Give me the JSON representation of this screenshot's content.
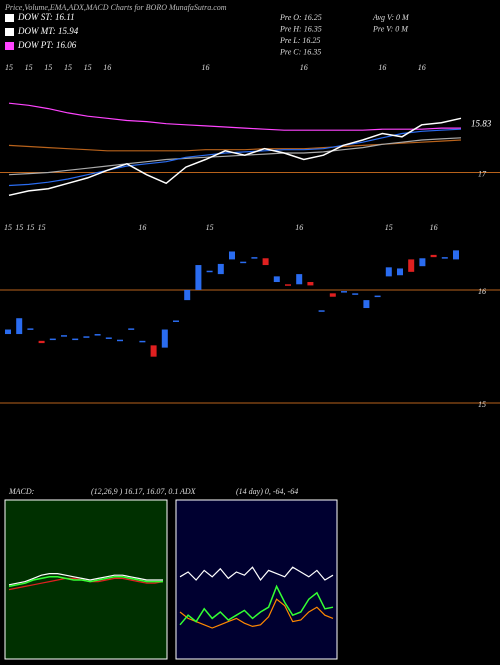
{
  "header": {
    "title": "Price,Volume,EMA,ADX,MACD Charts for BORO MunafaSutra.com",
    "legend": [
      {
        "label": "DOW ST: 16.11",
        "color": "#ffffff"
      },
      {
        "label": "DOW MT: 15.94",
        "color": "#ffffff"
      },
      {
        "label": "DOW PT: 16.06",
        "color": "#ff44ff"
      }
    ],
    "stats": [
      "Pre  O: 16.25",
      "Pre  H: 16.35",
      "Pre  L: 16.25",
      "Pre  C: 16.35",
      "Avg V: 0  M",
      "Pre  V: 0  M"
    ]
  },
  "chart_data": [
    {
      "type": "line",
      "annotation": "15.83",
      "hline_color": "#b8621b",
      "categories": [
        "15",
        "15",
        "15",
        "15",
        "15",
        "16",
        null,
        null,
        null,
        null,
        "16",
        null,
        null,
        null,
        null,
        "16",
        null,
        null,
        null,
        "16",
        null,
        "16",
        null,
        null
      ],
      "ylim": [
        16.7,
        17.9
      ],
      "yticks": [
        17
      ],
      "series": [
        {
          "color": "#b8621b",
          "values": [
            17.25,
            17.24,
            17.23,
            17.22,
            17.21,
            17.2,
            17.2,
            17.2,
            17.2,
            17.2,
            17.21,
            17.21,
            17.21,
            17.22,
            17.22,
            17.22,
            17.23,
            17.24,
            17.25,
            17.26,
            17.27,
            17.28,
            17.29,
            17.3
          ]
        },
        {
          "color": "#aaaaaa",
          "values": [
            16.98,
            16.99,
            17.0,
            17.02,
            17.04,
            17.06,
            17.08,
            17.1,
            17.12,
            17.13,
            17.14,
            17.15,
            17.16,
            17.17,
            17.18,
            17.18,
            17.19,
            17.21,
            17.23,
            17.26,
            17.28,
            17.3,
            17.31,
            17.32
          ]
        },
        {
          "color": "#ff44ff",
          "values": [
            17.64,
            17.62,
            17.59,
            17.55,
            17.52,
            17.5,
            17.48,
            17.47,
            17.45,
            17.44,
            17.43,
            17.42,
            17.41,
            17.4,
            17.39,
            17.39,
            17.39,
            17.39,
            17.39,
            17.4,
            17.4,
            17.4,
            17.41,
            17.41
          ]
        },
        {
          "color": "#2a6cf0",
          "values": [
            16.88,
            16.89,
            16.91,
            16.94,
            16.98,
            17.02,
            17.06,
            17.08,
            17.1,
            17.14,
            17.16,
            17.18,
            17.19,
            17.2,
            17.21,
            17.21,
            17.22,
            17.25,
            17.28,
            17.32,
            17.36,
            17.38,
            17.39,
            17.4
          ]
        },
        {
          "color": "#ffffff",
          "values": [
            16.79,
            16.83,
            16.85,
            16.9,
            16.95,
            17.02,
            17.08,
            16.98,
            16.9,
            17.05,
            17.12,
            17.2,
            17.16,
            17.22,
            17.18,
            17.12,
            17.16,
            17.25,
            17.3,
            17.36,
            17.33,
            17.44,
            17.46,
            17.5
          ]
        }
      ]
    },
    {
      "type": "candlestick",
      "hline_color": "#b8621b",
      "up_color": "#2a6cf0",
      "down_color": "#e02020",
      "categories": [
        "15",
        "15",
        "15",
        "15",
        null,
        null,
        null,
        null,
        null,
        null,
        null,
        null,
        "16",
        null,
        null,
        null,
        null,
        null,
        "15",
        null,
        null,
        null,
        null,
        null,
        null,
        null,
        "16",
        null,
        null,
        null,
        null,
        null,
        null,
        null,
        "15",
        null,
        null,
        null,
        "16",
        null,
        null
      ],
      "ylim": [
        14.85,
        16.53
      ],
      "yticks": [
        16,
        15
      ],
      "open": [
        15.61,
        15.61,
        15.65,
        15.55,
        15.56,
        15.59,
        15.56,
        15.58,
        15.6,
        15.57,
        15.55,
        15.65,
        15.54,
        15.51,
        15.49,
        15.72,
        15.91,
        16.0,
        16.16,
        16.14,
        16.27,
        16.24,
        16.28,
        16.28,
        16.07,
        16.05,
        16.05,
        16.07,
        15.81,
        15.97,
        15.98,
        15.96,
        15.84,
        15.94,
        16.12,
        16.13,
        16.27,
        16.21,
        16.31,
        16.28,
        16.27
      ],
      "close": [
        15.65,
        15.75,
        15.66,
        15.53,
        15.57,
        15.6,
        15.57,
        15.59,
        15.61,
        15.58,
        15.56,
        15.66,
        15.55,
        15.41,
        15.65,
        15.73,
        16.0,
        16.22,
        16.17,
        16.23,
        16.34,
        16.25,
        16.29,
        16.22,
        16.12,
        16.04,
        16.14,
        16.04,
        15.82,
        15.94,
        15.99,
        15.97,
        15.91,
        15.95,
        16.2,
        16.19,
        16.16,
        16.28,
        16.29,
        16.29,
        16.35
      ]
    },
    {
      "type": "line",
      "title": "MACD:",
      "subtitle": "(12,26,9 ) 16.17, 16.07, 0.1",
      "background": "#003000",
      "ylim": [
        0,
        100
      ],
      "series": [
        {
          "color": "#e02020",
          "values": [
            44,
            45,
            46,
            47,
            48,
            49,
            50,
            51,
            51,
            50,
            49,
            49,
            50,
            51,
            51,
            50,
            49,
            48,
            48,
            49
          ]
        },
        {
          "color": "#ffffff",
          "values": [
            47,
            48,
            49,
            51,
            53,
            54,
            54,
            53,
            52,
            51,
            50,
            51,
            52,
            53,
            53,
            52,
            51,
            50,
            50,
            50
          ]
        },
        {
          "color": "#33ff33",
          "values": [
            46,
            47,
            48,
            50,
            51,
            52,
            52,
            51,
            50,
            50,
            49,
            50,
            51,
            52,
            52,
            51,
            50,
            49,
            49,
            49
          ]
        }
      ]
    },
    {
      "type": "line",
      "title": "ADX",
      "subtitle": "(14 day) 0, -64, -64",
      "background": "#000030",
      "ylim": [
        0,
        100
      ],
      "series": [
        {
          "color": "#ffffff",
          "values": [
            52,
            55,
            50,
            56,
            52,
            57,
            51,
            55,
            53,
            58,
            50,
            56,
            54,
            52,
            58,
            55,
            52,
            56,
            50,
            53
          ]
        },
        {
          "color": "#ff8800",
          "values": [
            30,
            26,
            24,
            22,
            20,
            22,
            24,
            26,
            23,
            21,
            22,
            27,
            38,
            34,
            24,
            25,
            30,
            33,
            28,
            26
          ]
        },
        {
          "color": "#33ff33",
          "values": [
            22,
            28,
            24,
            32,
            26,
            30,
            25,
            28,
            31,
            26,
            30,
            33,
            46,
            36,
            28,
            30,
            38,
            42,
            32,
            33
          ]
        }
      ]
    }
  ]
}
